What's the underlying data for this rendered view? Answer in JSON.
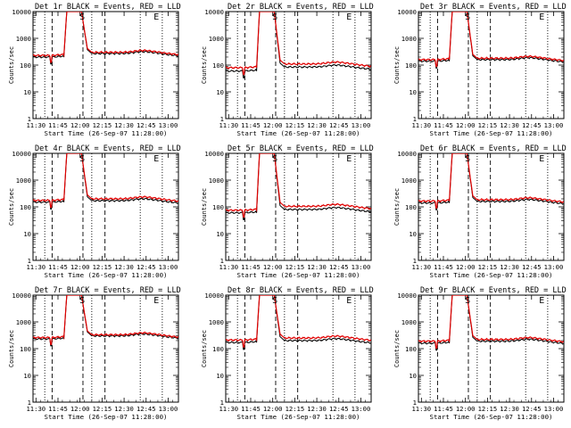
{
  "chart_data": {
    "type": "line",
    "colors": {
      "events": "#000000",
      "lld": "#e00000"
    },
    "common": {
      "ylabel": "Counts/sec",
      "xlabel": "Start Time (26-Sep-07 11:28:00)",
      "xtick_labels": [
        "11:30",
        "11:45",
        "12:00",
        "12:15",
        "12:30",
        "12:45",
        "13:00"
      ],
      "xtick_minutes": [
        2,
        17,
        32,
        47,
        62,
        77,
        92
      ],
      "xlim_minutes": [
        0,
        99
      ],
      "ylim": [
        1,
        10000
      ],
      "yscale": "log",
      "ytick_labels": [
        "1",
        "10",
        "100",
        "1000",
        "10000"
      ],
      "ytick_values": [
        1,
        10,
        100,
        1000,
        10000
      ],
      "dashed_lines_minutes": [
        13,
        34,
        49
      ],
      "dotted_lines_minutes": [
        8,
        40,
        73,
        88
      ],
      "S_marker_minute": 33.5,
      "E_marker_minute": 84,
      "markers": {
        "S": "S",
        "E": "E"
      },
      "series_names": [
        "Events",
        "LLD"
      ]
    },
    "panels": [
      {
        "title": "Det 1r BLACK = Events, RED = LLD",
        "events_base": 200,
        "lld_base": 230,
        "events_after": 270,
        "lld_after": 300,
        "peak": 10000
      },
      {
        "title": "Det 2r BLACK = Events, RED = LLD",
        "events_base": 60,
        "lld_base": 80,
        "events_after": 85,
        "lld_after": 110,
        "peak": 10000
      },
      {
        "title": "Det 3r BLACK = Events, RED = LLD",
        "events_base": 140,
        "lld_base": 160,
        "events_after": 160,
        "lld_after": 180,
        "peak": 10000
      },
      {
        "title": "Det 4r BLACK = Events, RED = LLD",
        "events_base": 150,
        "lld_base": 175,
        "events_after": 170,
        "lld_after": 200,
        "peak": 10000
      },
      {
        "title": "Det 5r BLACK = Events, RED = LLD",
        "events_base": 60,
        "lld_base": 75,
        "events_after": 80,
        "lld_after": 105,
        "peak": 10000
      },
      {
        "title": "Det 6r BLACK = Events, RED = LLD",
        "events_base": 140,
        "lld_base": 165,
        "events_after": 160,
        "lld_after": 185,
        "peak": 10000
      },
      {
        "title": "Det 7r BLACK = Events, RED = LLD",
        "events_base": 230,
        "lld_base": 260,
        "events_after": 300,
        "lld_after": 330,
        "peak": 10000
      },
      {
        "title": "Det 8r BLACK = Events, RED = LLD",
        "events_base": 170,
        "lld_base": 210,
        "events_after": 200,
        "lld_after": 250,
        "peak": 10000
      },
      {
        "title": "Det 9r BLACK = Events, RED = LLD",
        "events_base": 160,
        "lld_base": 190,
        "events_after": 190,
        "lld_after": 220,
        "peak": 10000
      }
    ]
  }
}
